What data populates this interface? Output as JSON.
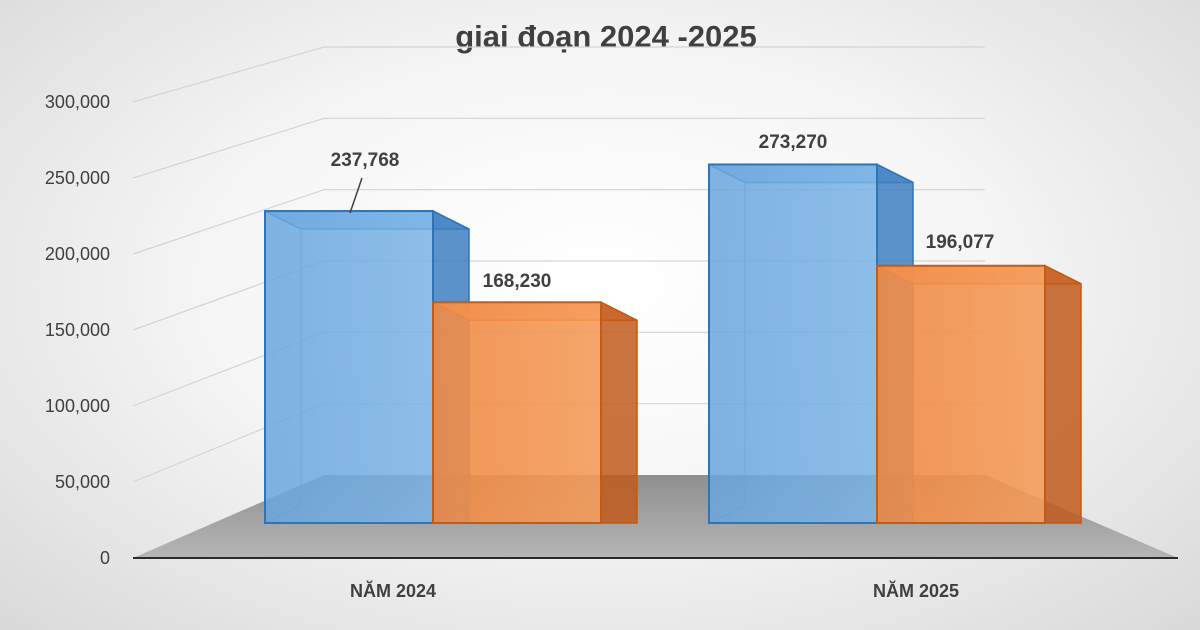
{
  "chart_data": {
    "type": "bar",
    "style": "3d-clustered-column",
    "title_lines": [
      "",
      "giai đoạn 2024 -2025"
    ],
    "categories": [
      "NĂM 2024",
      "NĂM 2025"
    ],
    "series": [
      {
        "values": [
          237768,
          273270
        ],
        "color": "#5b9bd5"
      },
      {
        "values": [
          168230,
          196077
        ],
        "color": "#ed7d31"
      }
    ],
    "data_labels": [
      [
        "237,768",
        "273,270"
      ],
      [
        "168,230",
        "196,077"
      ]
    ],
    "y_ticks": [
      "0",
      "50,000",
      "100,000",
      "150,000",
      "200,000",
      "250,000",
      "300,000"
    ],
    "ylim": [
      0,
      300000
    ],
    "grid": true,
    "legend": "none"
  }
}
